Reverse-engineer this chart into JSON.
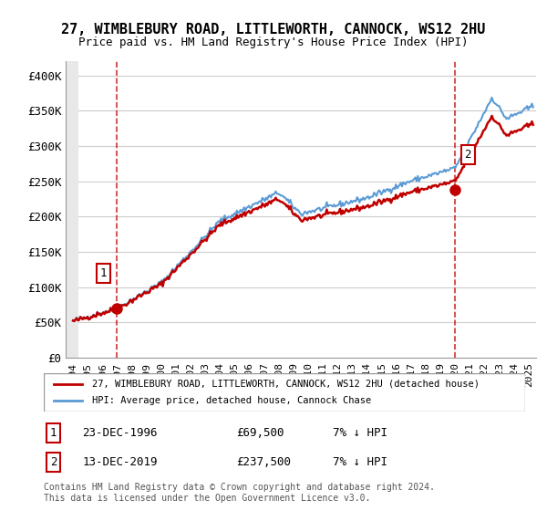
{
  "title": "27, WIMBLEBURY ROAD, LITTLEWORTH, CANNOCK, WS12 2HU",
  "subtitle": "Price paid vs. HM Land Registry's House Price Index (HPI)",
  "ylabel": "",
  "xlim_start": 1993.5,
  "xlim_end": 2025.5,
  "ylim": [
    0,
    420000
  ],
  "yticks": [
    0,
    50000,
    100000,
    150000,
    200000,
    250000,
    300000,
    350000,
    400000
  ],
  "ytick_labels": [
    "£0",
    "£50K",
    "£100K",
    "£150K",
    "£200K",
    "£250K",
    "£300K",
    "£350K",
    "£400K"
  ],
  "xticks": [
    1994,
    1995,
    1996,
    1997,
    1998,
    1999,
    2000,
    2001,
    2002,
    2003,
    2004,
    2005,
    2006,
    2007,
    2008,
    2009,
    2010,
    2011,
    2012,
    2013,
    2014,
    2015,
    2016,
    2017,
    2018,
    2019,
    2020,
    2021,
    2022,
    2023,
    2024,
    2025
  ],
  "hpi_color": "#5b9bd5",
  "price_color": "#c00000",
  "dot_color": "#c00000",
  "vline_color": "#c00000",
  "sale1_year": 1996.97,
  "sale1_price": 69500,
  "sale1_label": "1",
  "sale1_hpi_at_sale": 69500,
  "sale2_year": 2019.95,
  "sale2_price": 237500,
  "sale2_label": "2",
  "sale2_hpi_at_sale": 237500,
  "legend_line1": "27, WIMBLEBURY ROAD, LITTLEWORTH, CANNOCK, WS12 2HU (detached house)",
  "legend_line2": "HPI: Average price, detached house, Cannock Chase",
  "table_row1": [
    "1",
    "23-DEC-1996",
    "£69,500",
    "7% ↓ HPI"
  ],
  "table_row2": [
    "2",
    "13-DEC-2019",
    "£237,500",
    "7% ↓ HPI"
  ],
  "footnote": "Contains HM Land Registry data © Crown copyright and database right 2024.\nThis data is licensed under the Open Government Licence v3.0.",
  "background_hatch_color": "#e8e8e8",
  "grid_color": "#cccccc"
}
